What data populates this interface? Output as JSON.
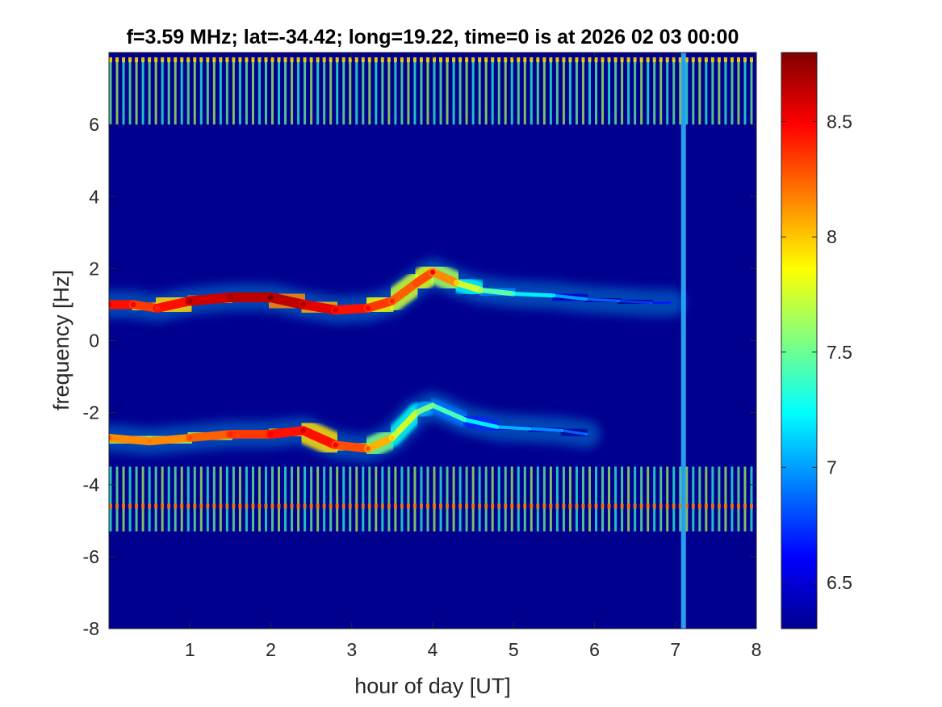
{
  "chart_data": {
    "type": "heatmap",
    "title": "f=3.59 MHz;  lat=-34.42; long=19.22, time=0 is at 2026 02 03 00:00",
    "xlabel": "hour of day [UT]",
    "ylabel": "frequency [Hz]",
    "xlim": [
      0,
      8
    ],
    "ylim": [
      -8,
      8
    ],
    "xticks": [
      1,
      2,
      3,
      4,
      5,
      6,
      7,
      8
    ],
    "yticks": [
      -8,
      -6,
      -4,
      -2,
      0,
      2,
      4,
      6
    ],
    "colormap": "jet",
    "colorbar": {
      "clim": [
        6.3,
        8.8
      ],
      "ticks": [
        6.5,
        7,
        7.5,
        8,
        8.5
      ]
    },
    "background_color": "#00008f",
    "features": [
      {
        "name": "positive Doppler trace",
        "time_h": [
          0.0,
          0.3,
          0.6,
          1.0,
          1.5,
          2.0,
          2.4,
          2.8,
          3.2,
          3.5,
          3.8,
          4.0,
          4.3,
          4.6,
          5.0,
          5.5,
          5.9,
          6.3,
          6.7,
          6.95
        ],
        "frequency_hz": [
          1.0,
          1.0,
          0.9,
          1.1,
          1.2,
          1.2,
          1.0,
          0.85,
          0.9,
          1.1,
          1.6,
          1.9,
          1.6,
          1.4,
          1.3,
          1.25,
          1.15,
          1.1,
          1.05,
          1.05
        ],
        "intensity": [
          8.5,
          8.4,
          8.3,
          8.6,
          8.6,
          8.7,
          8.6,
          8.5,
          8.4,
          8.3,
          8.2,
          8.4,
          7.9,
          7.6,
          7.3,
          7.1,
          6.9,
          6.8,
          6.7,
          6.6
        ]
      },
      {
        "name": "negative Doppler trace",
        "time_h": [
          0.0,
          0.5,
          1.0,
          1.5,
          2.0,
          2.4,
          2.8,
          3.2,
          3.5,
          3.8,
          4.0,
          4.4,
          4.8,
          5.2,
          5.6,
          5.9
        ],
        "frequency_hz": [
          -2.7,
          -2.8,
          -2.7,
          -2.6,
          -2.6,
          -2.5,
          -2.9,
          -3.0,
          -2.7,
          -2.0,
          -1.8,
          -2.2,
          -2.4,
          -2.45,
          -2.5,
          -2.6
        ],
        "intensity": [
          8.2,
          8.1,
          8.2,
          8.3,
          8.4,
          8.5,
          8.4,
          8.2,
          7.9,
          7.6,
          7.5,
          7.3,
          7.1,
          7.0,
          6.9,
          6.8
        ]
      }
    ],
    "interference": {
      "pulse_period_h": 0.08,
      "bands_hz": [
        [
          -5.3,
          -3.5
        ],
        [
          6.0,
          7.8
        ]
      ],
      "strong_line_hz": [
        -4.6,
        7.8
      ],
      "vertical_line_h": 7.1
    }
  }
}
